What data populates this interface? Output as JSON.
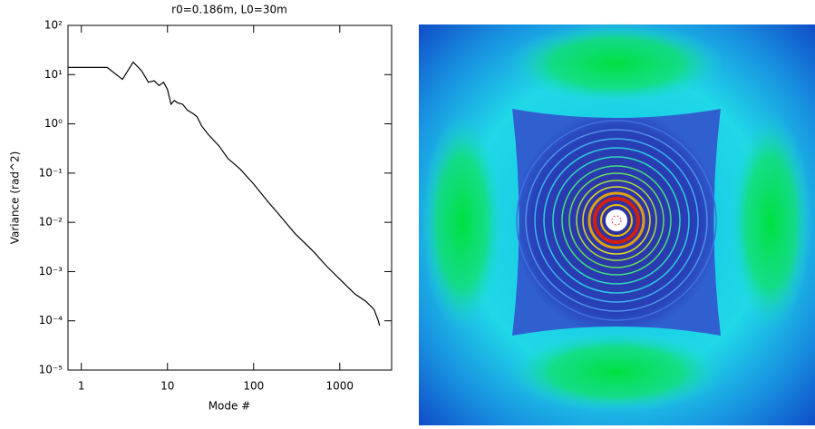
{
  "chart_data": {
    "type": "line",
    "title": "r0=0.186m, L0=30m",
    "x_label": "Mode #",
    "y_label": "Variance (rad^2)",
    "x_log": true,
    "y_log": true,
    "xlim": [
      0.7,
      4000
    ],
    "ylim": [
      1e-05,
      100
    ],
    "xticks": [
      1,
      10,
      100,
      1000
    ],
    "yticks": [
      {
        "value": 1e-05,
        "label": "10⁻⁵"
      },
      {
        "value": 0.0001,
        "label": "10⁻⁴"
      },
      {
        "value": 0.001,
        "label": "10⁻³"
      },
      {
        "value": 0.01,
        "label": "10⁻²"
      },
      {
        "value": 0.1,
        "label": "10⁻¹"
      },
      {
        "value": 1,
        "label": "10⁰"
      },
      {
        "value": 10,
        "label": "10¹"
      },
      {
        "value": 100,
        "label": "10²"
      }
    ],
    "series": [
      {
        "color": "#000000",
        "x": [
          0.7,
          1,
          2,
          3,
          4,
          5,
          6,
          7,
          8,
          9,
          10,
          11,
          12,
          13,
          15,
          17,
          20,
          22,
          25,
          30,
          40,
          50,
          70,
          100,
          150,
          200,
          300,
          500,
          700,
          1000,
          1500,
          2000,
          2500,
          2800,
          2900
        ],
        "values": [
          14,
          14,
          14,
          8,
          18,
          12,
          7,
          7.5,
          6,
          7,
          5,
          2.5,
          3,
          2.7,
          2.5,
          1.9,
          1.6,
          1.4,
          0.9,
          0.6,
          0.35,
          0.2,
          0.12,
          0.06,
          0.025,
          0.014,
          0.006,
          0.0025,
          0.0013,
          0.0007,
          0.00035,
          0.00025,
          0.00017,
          0.0001,
          8e-05
        ]
      }
    ]
  }
}
